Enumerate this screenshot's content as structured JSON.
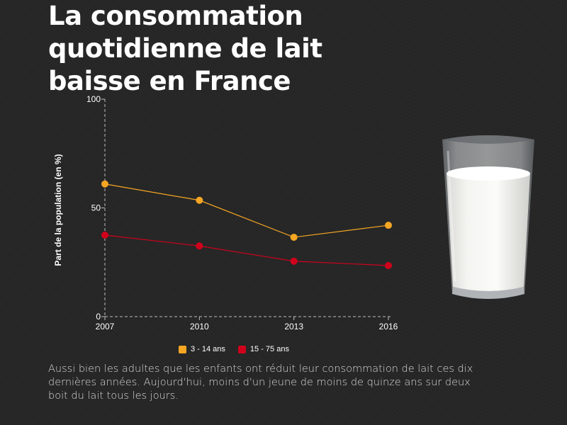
{
  "title": "La consommation quotidienne de lait baisse en France",
  "caption": "Aussi bien les adultes que les enfants ont réduit leur consommation de lait ces dix dernières années. Aujourd'hui, moins d'un jeune de moins de quinze ans sur deux boit du lait tous les jours.",
  "chart_data": {
    "type": "line",
    "title": "La consommation quotidienne de lait baisse en France",
    "xlabel": "",
    "ylabel": "Part de la population (en %)",
    "categories": [
      "2007",
      "2010",
      "2013",
      "2016"
    ],
    "ylim": [
      0,
      100
    ],
    "yticks": [
      0,
      50,
      100
    ],
    "grid": false,
    "legend": "bottom",
    "series": [
      {
        "name": "3 - 14 ans",
        "color": "#f5a623",
        "values": [
          61,
          53.5,
          36.5,
          42
        ]
      },
      {
        "name": "15 - 75 ans",
        "color": "#d0021b",
        "values": [
          37.5,
          32.5,
          25.5,
          23.5
        ]
      }
    ]
  },
  "glass_icon": "milk-glass-icon"
}
